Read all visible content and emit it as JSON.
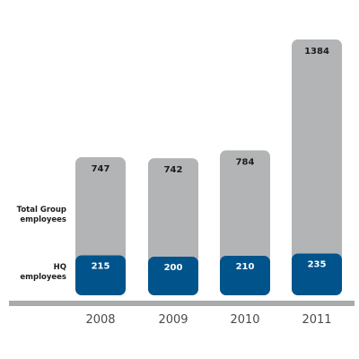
{
  "chart_data": {
    "type": "bar",
    "categories": [
      "2008",
      "2009",
      "2010",
      "2011"
    ],
    "series": [
      {
        "name": "Total Group employees",
        "values": [
          747,
          742,
          784,
          1384
        ]
      },
      {
        "name": "HQ employees",
        "values": [
          215,
          200,
          210,
          235
        ]
      }
    ],
    "row_labels": {
      "total": [
        "Total Group",
        "employees"
      ],
      "hq": [
        "HQ",
        "employees"
      ]
    },
    "title": "",
    "xlabel": "",
    "ylabel": "",
    "grid": false,
    "colors": {
      "total": "#b3b4b6",
      "hq": "#00548b",
      "baseline": "#a9aaac",
      "axis_text": "#4a4a4a",
      "value_dark": "#1d1d1b",
      "value_light": "#ffffff"
    }
  }
}
